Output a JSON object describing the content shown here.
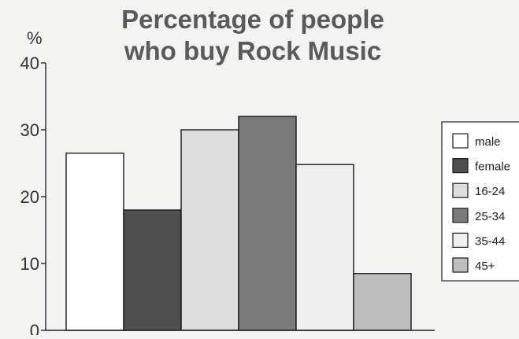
{
  "chart_data": {
    "type": "bar",
    "title_lines": [
      "Percentage of people",
      "who buy Rock Music"
    ],
    "ylabel": "%",
    "xlabel": "",
    "ylim": [
      0,
      40
    ],
    "yticks": [
      0,
      10,
      20,
      30,
      40
    ],
    "grid": false,
    "legend_position": "right",
    "categories": [
      "male",
      "female",
      "16-24",
      "25-34",
      "35-44",
      "45+"
    ],
    "values": [
      26.5,
      18,
      30,
      32,
      24.8,
      8.5
    ],
    "colors": [
      "#ffffff",
      "#4f4f4f",
      "#dcdcdc",
      "#7a7a7a",
      "#efefef",
      "#bdbdbd"
    ]
  }
}
